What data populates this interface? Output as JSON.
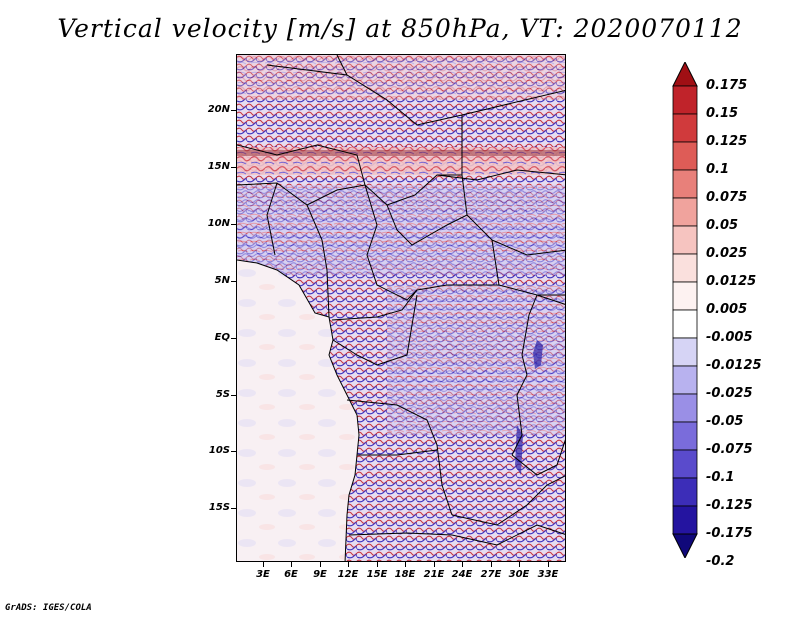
{
  "title": "Vertical velocity [m/s] at 850hPa, VT: 2020070112",
  "footer": "GrADS: IGES/COLA",
  "map": {
    "lat_labels": [
      "20N",
      "15N",
      "10N",
      "5N",
      "EQ",
      "5S",
      "10S",
      "15S"
    ],
    "lon_labels": [
      "3E",
      "6E",
      "9E",
      "12E",
      "15E",
      "18E",
      "21E",
      "24E",
      "27E",
      "30E",
      "33E"
    ]
  },
  "colorbar": {
    "labels": [
      "0.175",
      "0.15",
      "0.125",
      "0.1",
      "0.075",
      "0.05",
      "0.025",
      "0.0125",
      "0.005",
      "-0.005",
      "-0.0125",
      "-0.025",
      "-0.05",
      "-0.075",
      "-0.1",
      "-0.125",
      "-0.175",
      "-0.2"
    ],
    "colors": [
      "#a00f14",
      "#c0232a",
      "#d03a3c",
      "#de5c57",
      "#e8807a",
      "#f0a39d",
      "#f6c4c0",
      "#fae0dd",
      "#fdf2f1",
      "#ffffff",
      "#d6d4f5",
      "#b8b2ef",
      "#9a8fe6",
      "#7a6cdb",
      "#5a4bcc",
      "#3c2db8",
      "#2414a0",
      "#10087a"
    ]
  }
}
